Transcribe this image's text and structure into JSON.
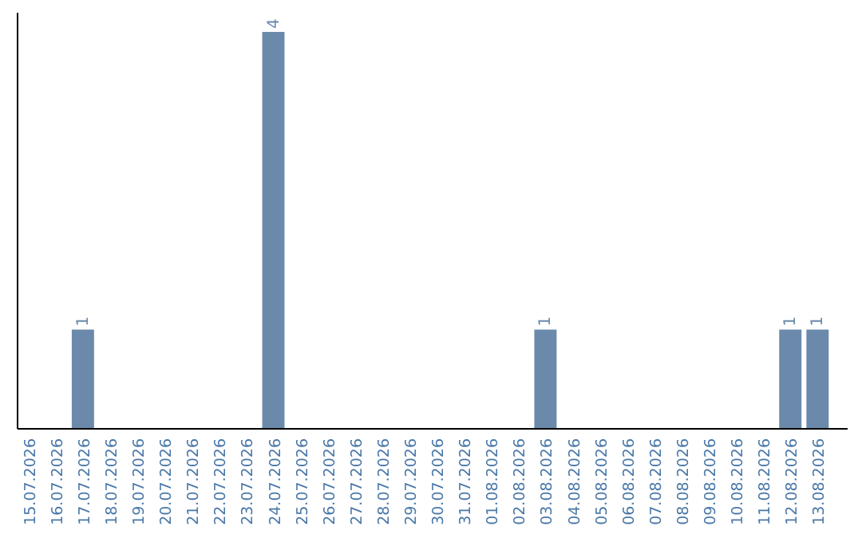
{
  "chart_data": {
    "type": "bar",
    "categories": [
      "15.07.2026",
      "16.07.2026",
      "17.07.2026",
      "18.07.2026",
      "19.07.2026",
      "20.07.2026",
      "21.07.2026",
      "22.07.2026",
      "23.07.2026",
      "24.07.2026",
      "25.07.2026",
      "26.07.2026",
      "27.07.2026",
      "28.07.2026",
      "29.07.2026",
      "30.07.2026",
      "31.07.2026",
      "01.08.2026",
      "02.08.2026",
      "03.08.2026",
      "04.08.2026",
      "05.08.2026",
      "06.08.2026",
      "07.08.2026",
      "08.08.2026",
      "09.08.2026",
      "10.08.2026",
      "11.08.2026",
      "12.08.2026",
      "13.08.2026"
    ],
    "values": [
      0,
      0,
      1,
      0,
      0,
      0,
      0,
      0,
      0,
      4,
      0,
      0,
      0,
      0,
      0,
      0,
      0,
      0,
      0,
      1,
      0,
      0,
      0,
      0,
      0,
      0,
      0,
      0,
      1,
      1
    ],
    "value_labels": [
      null,
      null,
      "1",
      null,
      null,
      null,
      null,
      null,
      null,
      "4",
      null,
      null,
      null,
      null,
      null,
      null,
      null,
      null,
      null,
      "1",
      null,
      null,
      null,
      null,
      null,
      null,
      null,
      null,
      "1",
      "1"
    ],
    "color": "#6b8aab",
    "tick_labels": "x"
  }
}
